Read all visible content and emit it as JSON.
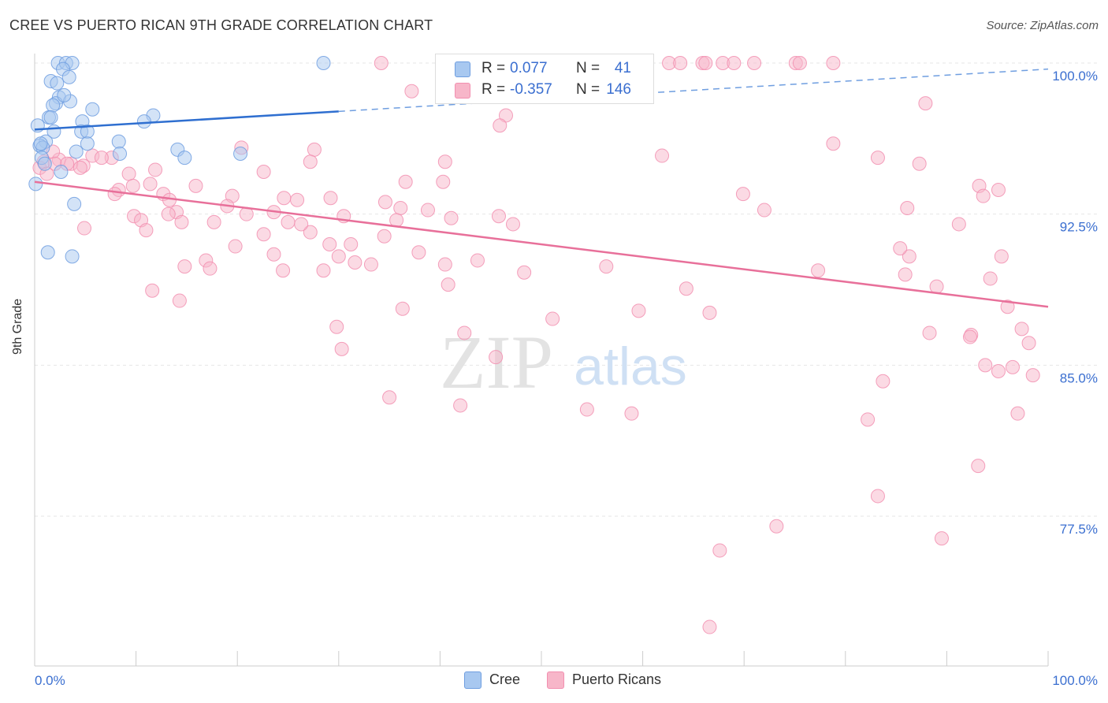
{
  "header": {
    "title": "CREE VS PUERTO RICAN 9TH GRADE CORRELATION CHART",
    "source": "Source: ZipAtlas.com"
  },
  "watermark": {
    "zip": "ZIP",
    "atlas": "atlas"
  },
  "legend": {
    "r_label": "R =",
    "n_label": "N =",
    "rows": [
      {
        "r": "0.077",
        "n": "41",
        "color": "#a8c8f0"
      },
      {
        "r": "-0.357",
        "n": "146",
        "color": "#f7b6c9"
      }
    ]
  },
  "bottom_legend": [
    {
      "label": "Cree",
      "color": "#a8c8f0"
    },
    {
      "label": "Puerto Ricans",
      "color": "#f7b6c9"
    }
  ],
  "chart_data": {
    "type": "scatter",
    "title": "CREE VS PUERTO RICAN 9TH GRADE CORRELATION CHART",
    "xlabel": "",
    "ylabel": "9th Grade",
    "xlim": [
      0,
      100
    ],
    "ylim": [
      71.5,
      100.5
    ],
    "x_tick_labels": [
      "0.0%",
      "100.0%"
    ],
    "y_ticks": [
      77.5,
      85.0,
      92.5,
      100.0
    ],
    "y_tick_labels": [
      "77.5%",
      "85.0%",
      "92.5%",
      "100.0%"
    ],
    "grid": true,
    "series": [
      {
        "name": "Cree",
        "color": "#6f9ee0",
        "fill": "#a8c8f0",
        "r": 0.077,
        "n": 41,
        "trend": {
          "x0": 0,
          "y0": 96.7,
          "x1": 30,
          "y1": 97.6,
          "x_dash_end": 100,
          "y_dash_end": 99.7
        },
        "points": [
          [
            2.3,
            100
          ],
          [
            3.1,
            100
          ],
          [
            3.7,
            100
          ],
          [
            28.5,
            100
          ],
          [
            2.8,
            99.7
          ],
          [
            3.4,
            99.3
          ],
          [
            1.6,
            99.1
          ],
          [
            2.2,
            99.0
          ],
          [
            2.4,
            98.3
          ],
          [
            3.5,
            98.1
          ],
          [
            2.1,
            98.0
          ],
          [
            1.8,
            97.9
          ],
          [
            5.7,
            97.7
          ],
          [
            11.7,
            97.4
          ],
          [
            1.4,
            97.3
          ],
          [
            4.7,
            97.1
          ],
          [
            10.8,
            97.1
          ],
          [
            0.3,
            96.9
          ],
          [
            4.6,
            96.6
          ],
          [
            5.2,
            96.6
          ],
          [
            1.9,
            96.6
          ],
          [
            1.1,
            96.1
          ],
          [
            5.2,
            96.0
          ],
          [
            8.3,
            96.1
          ],
          [
            0.5,
            95.9
          ],
          [
            0.8,
            95.8
          ],
          [
            14.1,
            95.7
          ],
          [
            4.1,
            95.6
          ],
          [
            8.4,
            95.5
          ],
          [
            20.3,
            95.5
          ],
          [
            14.8,
            95.3
          ],
          [
            0.7,
            95.3
          ],
          [
            2.6,
            94.6
          ],
          [
            0.1,
            94.0
          ],
          [
            3.9,
            93.0
          ],
          [
            1.3,
            90.6
          ],
          [
            3.7,
            90.4
          ],
          [
            1.0,
            95.0
          ],
          [
            2.9,
            98.4
          ],
          [
            0.6,
            96.0
          ],
          [
            1.6,
            97.3
          ]
        ]
      },
      {
        "name": "Puerto Ricans",
        "color": "#f28fb0",
        "fill": "#f7b6c9",
        "r": -0.357,
        "n": 146,
        "trend": {
          "x0": 0,
          "y0": 94.1,
          "x1": 100,
          "y1": 87.9
        },
        "points": [
          [
            34.2,
            100
          ],
          [
            46.6,
            100
          ],
          [
            50.3,
            100
          ],
          [
            51.3,
            100
          ],
          [
            57.3,
            100
          ],
          [
            59.6,
            100
          ],
          [
            62.6,
            100
          ],
          [
            63.7,
            100
          ],
          [
            65.9,
            100
          ],
          [
            66.2,
            100
          ],
          [
            67.9,
            100
          ],
          [
            69.0,
            100
          ],
          [
            71.0,
            100
          ],
          [
            75.1,
            100
          ],
          [
            75.5,
            100
          ],
          [
            78.8,
            100
          ],
          [
            37.2,
            98.6
          ],
          [
            87.9,
            98.0
          ],
          [
            46.5,
            97.4
          ],
          [
            45.9,
            96.9
          ],
          [
            78.8,
            96.0
          ],
          [
            20.4,
            95.8
          ],
          [
            27.6,
            95.7
          ],
          [
            61.9,
            95.4
          ],
          [
            83.2,
            95.3
          ],
          [
            27.2,
            95.1
          ],
          [
            40.5,
            95.1
          ],
          [
            87.3,
            95.0
          ],
          [
            5.7,
            95.4
          ],
          [
            7.6,
            95.3
          ],
          [
            2.4,
            95.2
          ],
          [
            3.6,
            95.0
          ],
          [
            4.8,
            94.9
          ],
          [
            11.9,
            94.7
          ],
          [
            22.6,
            94.6
          ],
          [
            9.3,
            94.5
          ],
          [
            36.6,
            94.1
          ],
          [
            40.3,
            94.1
          ],
          [
            11.4,
            94.0
          ],
          [
            15.9,
            93.9
          ],
          [
            93.2,
            93.9
          ],
          [
            8.3,
            93.7
          ],
          [
            95.1,
            93.7
          ],
          [
            9.7,
            93.9
          ],
          [
            12.7,
            93.5
          ],
          [
            7.9,
            93.5
          ],
          [
            69.9,
            93.5
          ],
          [
            24.6,
            93.3
          ],
          [
            19.5,
            93.4
          ],
          [
            13.3,
            93.2
          ],
          [
            25.9,
            93.2
          ],
          [
            29.2,
            93.3
          ],
          [
            34.6,
            93.1
          ],
          [
            93.6,
            93.4
          ],
          [
            86.1,
            92.8
          ],
          [
            36.1,
            92.8
          ],
          [
            38.8,
            92.7
          ],
          [
            72.0,
            92.7
          ],
          [
            14.0,
            92.6
          ],
          [
            20.9,
            92.5
          ],
          [
            23.6,
            92.6
          ],
          [
            30.5,
            92.4
          ],
          [
            41.1,
            92.3
          ],
          [
            45.8,
            92.4
          ],
          [
            9.8,
            92.4
          ],
          [
            10.5,
            92.2
          ],
          [
            14.5,
            92.1
          ],
          [
            17.7,
            92.1
          ],
          [
            25.0,
            92.1
          ],
          [
            35.7,
            92.2
          ],
          [
            47.2,
            92.0
          ],
          [
            4.9,
            91.8
          ],
          [
            11.0,
            91.7
          ],
          [
            27.2,
            91.6
          ],
          [
            22.6,
            91.5
          ],
          [
            34.5,
            91.4
          ],
          [
            29.1,
            91.0
          ],
          [
            19.8,
            90.9
          ],
          [
            23.6,
            90.5
          ],
          [
            30.0,
            90.4
          ],
          [
            16.9,
            90.2
          ],
          [
            31.6,
            90.1
          ],
          [
            40.5,
            90.0
          ],
          [
            86.3,
            90.4
          ],
          [
            95.4,
            90.4
          ],
          [
            14.8,
            89.9
          ],
          [
            17.3,
            89.8
          ],
          [
            24.5,
            89.7
          ],
          [
            28.5,
            89.7
          ],
          [
            48.3,
            89.6
          ],
          [
            77.3,
            89.7
          ],
          [
            85.9,
            89.5
          ],
          [
            94.3,
            89.3
          ],
          [
            40.8,
            89.0
          ],
          [
            11.6,
            88.7
          ],
          [
            14.3,
            88.2
          ],
          [
            36.3,
            87.8
          ],
          [
            59.6,
            87.7
          ],
          [
            66.6,
            87.6
          ],
          [
            51.1,
            87.3
          ],
          [
            29.8,
            86.9
          ],
          [
            42.4,
            86.6
          ],
          [
            92.4,
            86.5
          ],
          [
            92.3,
            86.4
          ],
          [
            98.1,
            86.1
          ],
          [
            30.3,
            85.8
          ],
          [
            45.5,
            85.4
          ],
          [
            93.8,
            85.0
          ],
          [
            95.1,
            84.7
          ],
          [
            98.5,
            84.5
          ],
          [
            83.7,
            84.2
          ],
          [
            35.0,
            83.4
          ],
          [
            42.0,
            83.0
          ],
          [
            54.5,
            82.8
          ],
          [
            58.9,
            82.6
          ],
          [
            97.0,
            82.6
          ],
          [
            82.2,
            82.3
          ],
          [
            83.2,
            78.5
          ],
          [
            93.1,
            80.0
          ],
          [
            73.2,
            77.0
          ],
          [
            89.5,
            76.4
          ],
          [
            67.6,
            75.8
          ],
          [
            66.6,
            72.0
          ],
          [
            0.5,
            94.8
          ],
          [
            0.9,
            95.1
          ],
          [
            1.2,
            94.5
          ],
          [
            1.8,
            95.6
          ],
          [
            2.0,
            95.0
          ],
          [
            6.6,
            95.3
          ],
          [
            3.2,
            95.0
          ],
          [
            4.5,
            94.8
          ],
          [
            13.2,
            92.5
          ],
          [
            19.0,
            92.9
          ],
          [
            26.3,
            92.0
          ],
          [
            31.2,
            91.0
          ],
          [
            33.2,
            90.0
          ],
          [
            37.9,
            90.6
          ],
          [
            43.7,
            90.2
          ],
          [
            56.4,
            89.9
          ],
          [
            64.3,
            88.8
          ],
          [
            89.0,
            88.9
          ],
          [
            96.0,
            87.9
          ],
          [
            88.3,
            86.6
          ],
          [
            96.5,
            84.9
          ],
          [
            85.4,
            90.8
          ],
          [
            91.2,
            92.0
          ],
          [
            97.4,
            86.8
          ]
        ]
      }
    ]
  }
}
